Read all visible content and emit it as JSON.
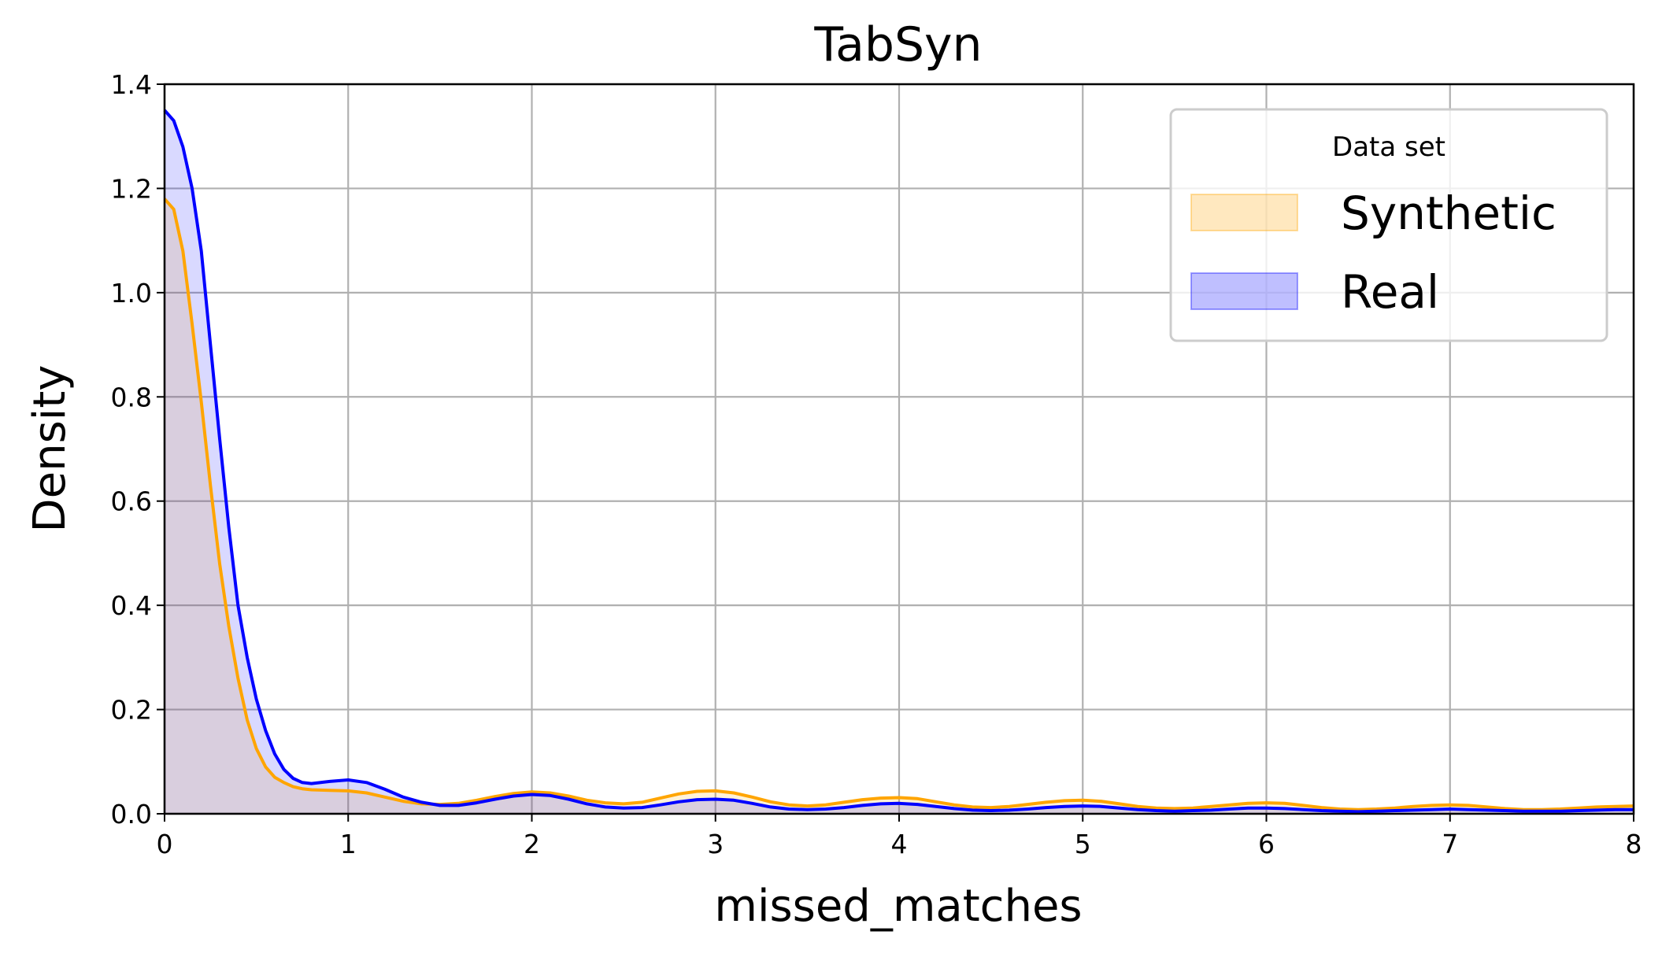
{
  "chart_data": {
    "type": "area",
    "title": "TabSyn",
    "xlabel": "missed_matches",
    "ylabel": "Density",
    "xlim": [
      0,
      8
    ],
    "ylim": [
      0,
      1.4
    ],
    "xticks": [
      "0",
      "1",
      "2",
      "3",
      "4",
      "5",
      "6",
      "7",
      "8"
    ],
    "yticks": [
      "0.0",
      "0.2",
      "0.4",
      "0.6",
      "0.8",
      "1.0",
      "1.2",
      "1.4"
    ],
    "grid": true,
    "legend": {
      "title": "Data set",
      "placement": "top-right",
      "entries": [
        "Synthetic",
        "Real"
      ]
    },
    "series": [
      {
        "name": "Synthetic",
        "line_color": "#ffa500",
        "fill_color": "#ffa500",
        "x": [
          0,
          0.05,
          0.1,
          0.15,
          0.2,
          0.25,
          0.3,
          0.35,
          0.4,
          0.45,
          0.5,
          0.55,
          0.6,
          0.65,
          0.7,
          0.75,
          0.8,
          0.9,
          1.0,
          1.1,
          1.2,
          1.3,
          1.4,
          1.5,
          1.6,
          1.7,
          1.8,
          1.9,
          2.0,
          2.1,
          2.2,
          2.3,
          2.4,
          2.5,
          2.6,
          2.7,
          2.8,
          2.9,
          3.0,
          3.1,
          3.2,
          3.3,
          3.4,
          3.5,
          3.6,
          3.7,
          3.8,
          3.9,
          4.0,
          4.1,
          4.2,
          4.3,
          4.4,
          4.5,
          4.6,
          4.7,
          4.8,
          4.9,
          5.0,
          5.1,
          5.2,
          5.3,
          5.4,
          5.5,
          5.6,
          5.7,
          5.8,
          5.9,
          6.0,
          6.1,
          6.2,
          6.3,
          6.4,
          6.5,
          6.6,
          6.7,
          6.8,
          6.9,
          7.0,
          7.1,
          7.2,
          7.3,
          7.4,
          7.5,
          7.6,
          7.7,
          7.8,
          7.9,
          8.0
        ],
        "y": [
          1.18,
          1.16,
          1.08,
          0.94,
          0.79,
          0.63,
          0.48,
          0.36,
          0.26,
          0.18,
          0.125,
          0.09,
          0.07,
          0.06,
          0.052,
          0.048,
          0.046,
          0.045,
          0.044,
          0.04,
          0.032,
          0.024,
          0.019,
          0.018,
          0.02,
          0.026,
          0.033,
          0.039,
          0.042,
          0.04,
          0.034,
          0.026,
          0.021,
          0.019,
          0.022,
          0.03,
          0.038,
          0.043,
          0.044,
          0.04,
          0.032,
          0.023,
          0.017,
          0.015,
          0.017,
          0.022,
          0.027,
          0.03,
          0.031,
          0.029,
          0.023,
          0.017,
          0.013,
          0.012,
          0.014,
          0.018,
          0.022,
          0.025,
          0.026,
          0.024,
          0.019,
          0.014,
          0.011,
          0.01,
          0.011,
          0.014,
          0.017,
          0.02,
          0.021,
          0.02,
          0.016,
          0.012,
          0.009,
          0.008,
          0.009,
          0.011,
          0.014,
          0.016,
          0.017,
          0.016,
          0.013,
          0.01,
          0.008,
          0.008,
          0.009,
          0.011,
          0.013,
          0.014,
          0.015
        ]
      },
      {
        "name": "Real",
        "line_color": "#0000ff",
        "fill_color": "#0000ff",
        "x": [
          0,
          0.05,
          0.1,
          0.15,
          0.2,
          0.25,
          0.3,
          0.35,
          0.4,
          0.45,
          0.5,
          0.55,
          0.6,
          0.65,
          0.7,
          0.75,
          0.8,
          0.9,
          1.0,
          1.1,
          1.2,
          1.3,
          1.4,
          1.5,
          1.6,
          1.7,
          1.8,
          1.9,
          2.0,
          2.1,
          2.2,
          2.3,
          2.4,
          2.5,
          2.6,
          2.7,
          2.8,
          2.9,
          3.0,
          3.1,
          3.2,
          3.3,
          3.4,
          3.5,
          3.6,
          3.7,
          3.8,
          3.9,
          4.0,
          4.1,
          4.2,
          4.3,
          4.4,
          4.5,
          4.6,
          4.7,
          4.8,
          4.9,
          5.0,
          5.1,
          5.2,
          5.3,
          5.4,
          5.5,
          5.6,
          5.7,
          5.8,
          5.9,
          6.0,
          6.1,
          6.2,
          6.3,
          6.4,
          6.5,
          6.6,
          6.7,
          6.8,
          6.9,
          7.0,
          7.1,
          7.2,
          7.3,
          7.4,
          7.5,
          7.6,
          7.7,
          7.8,
          7.9,
          8.0
        ],
        "y": [
          1.35,
          1.33,
          1.28,
          1.2,
          1.08,
          0.9,
          0.72,
          0.55,
          0.4,
          0.3,
          0.22,
          0.16,
          0.115,
          0.085,
          0.068,
          0.06,
          0.058,
          0.062,
          0.065,
          0.06,
          0.047,
          0.032,
          0.022,
          0.016,
          0.016,
          0.021,
          0.028,
          0.034,
          0.037,
          0.035,
          0.028,
          0.019,
          0.013,
          0.011,
          0.012,
          0.017,
          0.023,
          0.027,
          0.028,
          0.026,
          0.02,
          0.013,
          0.009,
          0.008,
          0.009,
          0.012,
          0.016,
          0.019,
          0.02,
          0.018,
          0.014,
          0.01,
          0.007,
          0.006,
          0.007,
          0.009,
          0.012,
          0.014,
          0.015,
          0.014,
          0.011,
          0.008,
          0.006,
          0.005,
          0.006,
          0.007,
          0.009,
          0.011,
          0.011,
          0.01,
          0.008,
          0.006,
          0.005,
          0.004,
          0.005,
          0.006,
          0.007,
          0.008,
          0.009,
          0.008,
          0.007,
          0.006,
          0.005,
          0.005,
          0.005,
          0.006,
          0.007,
          0.008,
          0.008
        ]
      }
    ]
  }
}
